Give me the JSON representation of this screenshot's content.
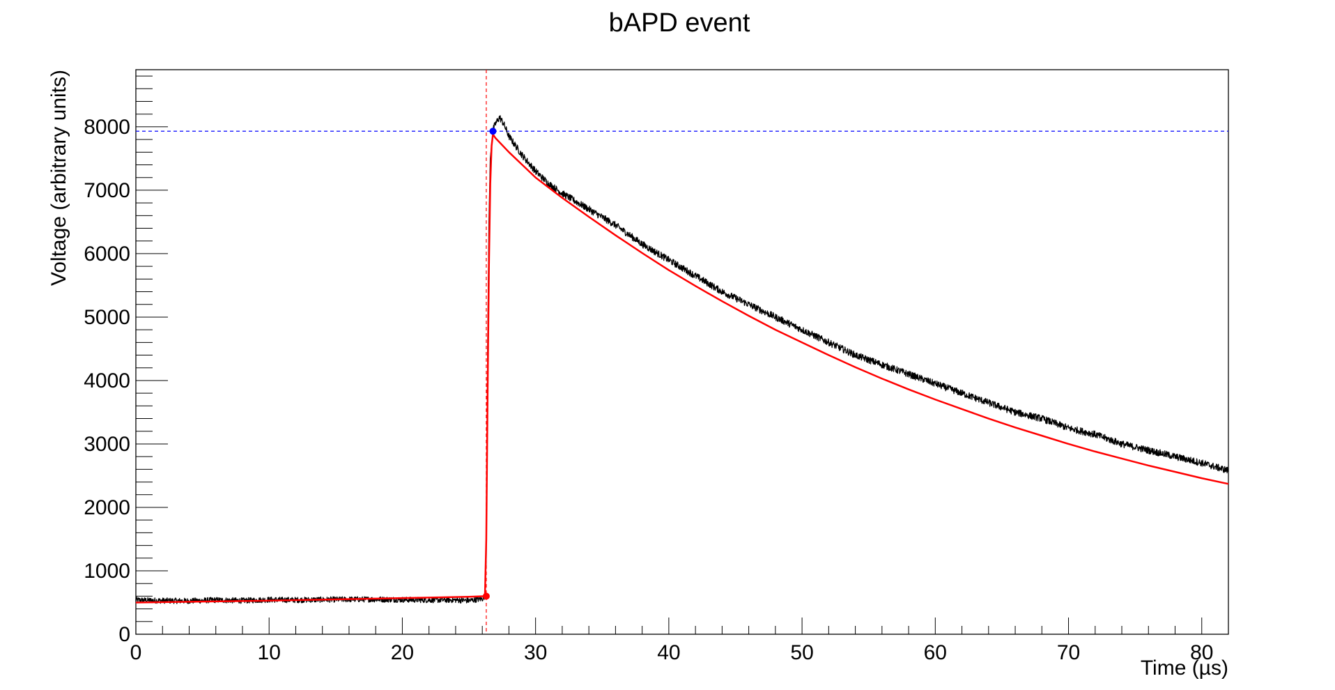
{
  "chart_data": {
    "type": "line",
    "title": "bAPD event",
    "xlabel": "Time (µs)",
    "ylabel": "Voltage (arbitrary units)",
    "xlim": [
      0,
      82
    ],
    "ylim": [
      0,
      8900
    ],
    "x_ticks": [
      0,
      10,
      20,
      30,
      40,
      50,
      60,
      70,
      80
    ],
    "y_ticks": [
      0,
      1000,
      2000,
      3000,
      4000,
      5000,
      6000,
      7000,
      8000
    ],
    "grid": false,
    "legend": "none",
    "series": [
      {
        "color": "#000000",
        "style": "noisy waveform",
        "x": [
          0,
          2,
          4,
          6,
          8,
          10,
          12,
          14,
          16,
          18,
          20,
          22,
          24,
          25,
          26,
          26.2,
          26.3,
          26.4,
          26.5,
          26.6,
          26.8,
          27.0,
          27.3,
          27.6,
          28,
          29,
          30,
          31,
          32,
          34,
          36,
          38,
          40,
          42,
          44,
          46,
          48,
          50,
          52,
          54,
          56,
          58,
          60,
          62,
          64,
          66,
          68,
          70,
          72,
          74,
          76,
          78,
          80,
          82
        ],
        "y": [
          540,
          530,
          525,
          540,
          530,
          545,
          540,
          545,
          550,
          550,
          545,
          540,
          540,
          530,
          560,
          600,
          1200,
          4500,
          6500,
          7500,
          7950,
          8050,
          8150,
          8050,
          7850,
          7550,
          7300,
          7100,
          6950,
          6700,
          6450,
          6150,
          5900,
          5650,
          5400,
          5200,
          5000,
          4800,
          4600,
          4400,
          4250,
          4100,
          3950,
          3800,
          3650,
          3500,
          3400,
          3250,
          3150,
          3000,
          2900,
          2800,
          2700,
          2580
        ]
      },
      {
        "color": "#ff0000",
        "style": "fit curve",
        "x": [
          0,
          5,
          10,
          15,
          20,
          25,
          26.2,
          26.3,
          26.4,
          26.5,
          26.6,
          26.7,
          26.8,
          27,
          28,
          29,
          30,
          32,
          34,
          36,
          38,
          40,
          42,
          44,
          46,
          48,
          50,
          52,
          54,
          56,
          58,
          60,
          62,
          64,
          66,
          68,
          70,
          72,
          74,
          76,
          78,
          80,
          82
        ],
        "y": [
          500,
          515,
          530,
          550,
          570,
          590,
          600,
          1500,
          3800,
          5800,
          7100,
          7700,
          7880,
          7820,
          7600,
          7400,
          7200,
          6880,
          6580,
          6290,
          6010,
          5740,
          5490,
          5250,
          5020,
          4800,
          4600,
          4400,
          4210,
          4030,
          3860,
          3700,
          3550,
          3400,
          3260,
          3130,
          3000,
          2880,
          2770,
          2660,
          2560,
          2460,
          2370
        ]
      }
    ],
    "markers": [
      {
        "name": "start",
        "x": 26.3,
        "y": 600,
        "color": "#ff0000"
      },
      {
        "name": "peak",
        "x": 26.8,
        "y": 7930,
        "color": "#0000ff"
      }
    ],
    "reference_lines": [
      {
        "orientation": "vertical",
        "value": 26.3,
        "color": "#ff0000",
        "style": "dashed"
      },
      {
        "orientation": "horizontal",
        "value": 7930,
        "color": "#0000ff",
        "style": "dashed"
      }
    ]
  }
}
